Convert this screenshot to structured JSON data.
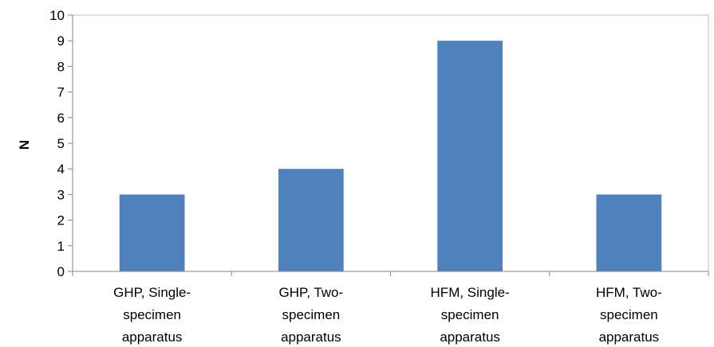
{
  "chart_data": {
    "type": "bar",
    "title": "",
    "xlabel": "",
    "ylabel": "N",
    "ylim": [
      0,
      10
    ],
    "yticks": [
      0,
      1,
      2,
      3,
      4,
      5,
      6,
      7,
      8,
      9,
      10
    ],
    "grid": false,
    "legend": "none",
    "categories": [
      [
        "GHP, Single-",
        "specimen",
        "apparatus"
      ],
      [
        "GHP, Two-",
        "specimen",
        "apparatus"
      ],
      [
        "HFM, Single-",
        "specimen",
        "apparatus"
      ],
      [
        "HFM, Two-",
        "specimen",
        "apparatus"
      ]
    ],
    "values": [
      3,
      4,
      9,
      3
    ],
    "colors": {
      "bar": "#4f81bd",
      "axis": "#868686",
      "plot_border": "#bfbfbf"
    }
  }
}
